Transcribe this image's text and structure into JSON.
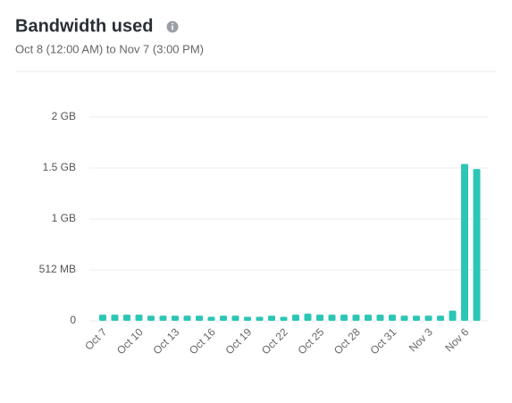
{
  "chart_data": {
    "type": "bar",
    "title": "Bandwidth used",
    "subtitle": "Oct 8 (12:00 AM) to Nov 7 (3:00 PM)",
    "categories": [
      "Oct 7",
      null,
      null,
      "Oct 10",
      null,
      null,
      "Oct 13",
      null,
      null,
      "Oct 16",
      null,
      null,
      "Oct 19",
      null,
      null,
      "Oct 22",
      null,
      null,
      "Oct 25",
      null,
      null,
      "Oct 28",
      null,
      null,
      "Oct 31",
      null,
      null,
      "Nov 3",
      null,
      null,
      "Nov 6",
      null
    ],
    "values": [
      0.06,
      0.06,
      0.06,
      0.06,
      0.05,
      0.05,
      0.05,
      0.05,
      0.05,
      0.04,
      0.05,
      0.05,
      0.04,
      0.04,
      0.05,
      0.04,
      0.06,
      0.07,
      0.06,
      0.06,
      0.06,
      0.06,
      0.06,
      0.06,
      0.06,
      0.05,
      0.05,
      0.05,
      0.05,
      0.1,
      1.54,
      1.49
    ],
    "color": "#2cc6b5",
    "ylim": [
      0,
      2
    ],
    "yticks": [
      {
        "value": 0,
        "label": "0"
      },
      {
        "value": 0.5,
        "label": "512 MB"
      },
      {
        "value": 1,
        "label": "1 GB"
      },
      {
        "value": 1.5,
        "label": "1.5 GB"
      },
      {
        "value": 2,
        "label": "2 GB"
      }
    ],
    "grid": true
  }
}
